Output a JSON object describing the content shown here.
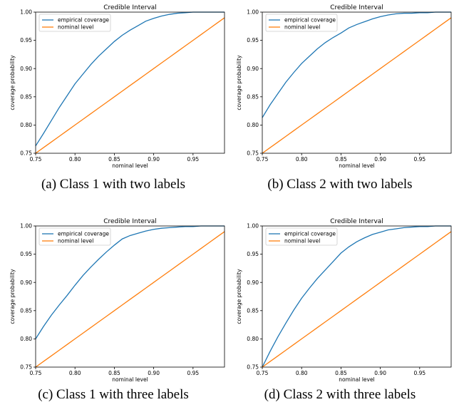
{
  "chart_data": [
    {
      "type": "line",
      "title": "Credible Interval",
      "xlabel": "nominal level",
      "ylabel": "coverage probability",
      "caption": "(a) Class 1 with two labels",
      "xlim": [
        0.75,
        0.99
      ],
      "ylim": [
        0.75,
        1.0
      ],
      "xticks": [
        "0.75",
        "0.80",
        "0.85",
        "0.90",
        "0.95"
      ],
      "yticks": [
        "0.75",
        "0.80",
        "0.85",
        "0.90",
        "0.95",
        "1.00"
      ],
      "legend": "top-left",
      "x": [
        0.75,
        0.76,
        0.77,
        0.78,
        0.79,
        0.8,
        0.81,
        0.82,
        0.83,
        0.84,
        0.85,
        0.86,
        0.87,
        0.88,
        0.89,
        0.9,
        0.91,
        0.92,
        0.93,
        0.94,
        0.95,
        0.96,
        0.97,
        0.98,
        0.99
      ],
      "series": [
        {
          "name": "empirical coverage",
          "color": "#1f77b4",
          "values": [
            0.763,
            0.785,
            0.808,
            0.831,
            0.852,
            0.873,
            0.89,
            0.907,
            0.922,
            0.935,
            0.948,
            0.959,
            0.968,
            0.976,
            0.984,
            0.989,
            0.993,
            0.996,
            0.998,
            0.999,
            1.0,
            1.0,
            1.0,
            1.0,
            1.0
          ]
        },
        {
          "name": "nominal level",
          "color": "#ff7f0e",
          "values": [
            0.75,
            0.76,
            0.77,
            0.78,
            0.79,
            0.8,
            0.81,
            0.82,
            0.83,
            0.84,
            0.85,
            0.86,
            0.87,
            0.88,
            0.89,
            0.9,
            0.91,
            0.92,
            0.93,
            0.94,
            0.95,
            0.96,
            0.97,
            0.98,
            0.99
          ]
        }
      ]
    },
    {
      "type": "line",
      "title": "Credible Interval",
      "xlabel": "nominal level",
      "ylabel": "coverage probability",
      "caption": "(b) Class 2 with two labels",
      "xlim": [
        0.75,
        0.99
      ],
      "ylim": [
        0.75,
        1.0
      ],
      "xticks": [
        "0.75",
        "0.80",
        "0.85",
        "0.90",
        "0.95"
      ],
      "yticks": [
        "0.75",
        "0.80",
        "0.85",
        "0.90",
        "0.95",
        "1.00"
      ],
      "legend": "top-left",
      "x": [
        0.75,
        0.76,
        0.77,
        0.78,
        0.79,
        0.8,
        0.81,
        0.82,
        0.83,
        0.84,
        0.85,
        0.86,
        0.87,
        0.88,
        0.89,
        0.9,
        0.91,
        0.92,
        0.93,
        0.94,
        0.95,
        0.96,
        0.97,
        0.98,
        0.99
      ],
      "series": [
        {
          "name": "empirical coverage",
          "color": "#1f77b4",
          "values": [
            0.813,
            0.836,
            0.856,
            0.876,
            0.893,
            0.909,
            0.922,
            0.935,
            0.946,
            0.955,
            0.963,
            0.972,
            0.978,
            0.983,
            0.988,
            0.992,
            0.995,
            0.997,
            0.998,
            0.998,
            0.999,
            0.999,
            1.0,
            1.0,
            1.0
          ]
        },
        {
          "name": "nominal level",
          "color": "#ff7f0e",
          "values": [
            0.75,
            0.76,
            0.77,
            0.78,
            0.79,
            0.8,
            0.81,
            0.82,
            0.83,
            0.84,
            0.85,
            0.86,
            0.87,
            0.88,
            0.89,
            0.9,
            0.91,
            0.92,
            0.93,
            0.94,
            0.95,
            0.96,
            0.97,
            0.98,
            0.99
          ]
        }
      ]
    },
    {
      "type": "line",
      "title": "Credible Interval",
      "xlabel": "nominal level",
      "ylabel": "coverage probability",
      "caption": "(c) Class 1 with three labels",
      "xlim": [
        0.75,
        0.99
      ],
      "ylim": [
        0.75,
        1.0
      ],
      "xticks": [
        "0.75",
        "0.80",
        "0.85",
        "0.90",
        "0.95"
      ],
      "yticks": [
        "0.75",
        "0.80",
        "0.85",
        "0.90",
        "0.95",
        "1.00"
      ],
      "legend": "top-left",
      "x": [
        0.75,
        0.76,
        0.77,
        0.78,
        0.79,
        0.8,
        0.81,
        0.82,
        0.83,
        0.84,
        0.85,
        0.86,
        0.87,
        0.88,
        0.89,
        0.9,
        0.91,
        0.92,
        0.93,
        0.94,
        0.95,
        0.96,
        0.97,
        0.98,
        0.99
      ],
      "series": [
        {
          "name": "empirical coverage",
          "color": "#1f77b4",
          "values": [
            0.8,
            0.822,
            0.842,
            0.86,
            0.877,
            0.895,
            0.912,
            0.927,
            0.941,
            0.954,
            0.966,
            0.977,
            0.983,
            0.987,
            0.991,
            0.994,
            0.996,
            0.997,
            0.998,
            0.999,
            0.999,
            1.0,
            1.0,
            1.0,
            1.0
          ]
        },
        {
          "name": "nominal level",
          "color": "#ff7f0e",
          "values": [
            0.75,
            0.76,
            0.77,
            0.78,
            0.79,
            0.8,
            0.81,
            0.82,
            0.83,
            0.84,
            0.85,
            0.86,
            0.87,
            0.88,
            0.89,
            0.9,
            0.91,
            0.92,
            0.93,
            0.94,
            0.95,
            0.96,
            0.97,
            0.98,
            0.99
          ]
        }
      ]
    },
    {
      "type": "line",
      "title": "Credible Interval",
      "xlabel": "nominal level",
      "ylabel": "coverage probability",
      "caption": "(d) Class 2 with three labels",
      "xlim": [
        0.75,
        0.99
      ],
      "ylim": [
        0.75,
        1.0
      ],
      "xticks": [
        "0.75",
        "0.80",
        "0.85",
        "0.90",
        "0.95"
      ],
      "yticks": [
        "0.75",
        "0.80",
        "0.85",
        "0.90",
        "0.95",
        "1.00"
      ],
      "legend": "top-left",
      "x": [
        0.75,
        0.76,
        0.77,
        0.78,
        0.79,
        0.8,
        0.81,
        0.82,
        0.83,
        0.84,
        0.85,
        0.86,
        0.87,
        0.88,
        0.89,
        0.9,
        0.91,
        0.92,
        0.93,
        0.94,
        0.95,
        0.96,
        0.97,
        0.98,
        0.99
      ],
      "series": [
        {
          "name": "empirical coverage",
          "color": "#1f77b4",
          "values": [
            0.75,
            0.778,
            0.804,
            0.828,
            0.851,
            0.872,
            0.89,
            0.907,
            0.922,
            0.937,
            0.952,
            0.963,
            0.972,
            0.979,
            0.985,
            0.989,
            0.993,
            0.995,
            0.997,
            0.998,
            0.999,
            0.999,
            1.0,
            1.0,
            1.0
          ]
        },
        {
          "name": "nominal level",
          "color": "#ff7f0e",
          "values": [
            0.75,
            0.76,
            0.77,
            0.78,
            0.79,
            0.8,
            0.81,
            0.82,
            0.83,
            0.84,
            0.85,
            0.86,
            0.87,
            0.88,
            0.89,
            0.9,
            0.91,
            0.92,
            0.93,
            0.94,
            0.95,
            0.96,
            0.97,
            0.98,
            0.99
          ]
        }
      ]
    }
  ]
}
